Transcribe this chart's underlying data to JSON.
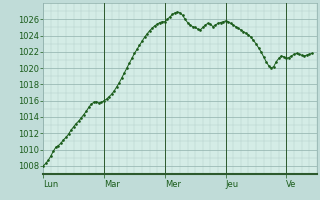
{
  "background_color": "#c0dcd8",
  "plot_bg_color": "#d4ece6",
  "line_color": "#1a5c1a",
  "grid_color_minor": "#b0ccc8",
  "grid_color_major": "#90b0ac",
  "ylim": [
    1007,
    1028
  ],
  "ytick_vals": [
    1008,
    1010,
    1012,
    1014,
    1016,
    1018,
    1020,
    1022,
    1024,
    1026
  ],
  "xlabel_days": [
    "Lun",
    "Mar",
    "Mer",
    "Jeu",
    "Ve"
  ],
  "day_positions": [
    0,
    24,
    48,
    72,
    96
  ],
  "total_hours": 108,
  "pressure_values": [
    1008.0,
    1008.3,
    1008.7,
    1009.2,
    1009.8,
    1010.3,
    1010.5,
    1010.8,
    1011.2,
    1011.5,
    1011.9,
    1012.4,
    1012.8,
    1013.2,
    1013.5,
    1013.9,
    1014.3,
    1014.7,
    1015.2,
    1015.6,
    1015.8,
    1015.9,
    1015.7,
    1015.8,
    1016.0,
    1016.2,
    1016.5,
    1016.8,
    1017.2,
    1017.7,
    1018.2,
    1018.8,
    1019.4,
    1020.0,
    1020.6,
    1021.2,
    1021.8,
    1022.3,
    1022.8,
    1023.3,
    1023.8,
    1024.2,
    1024.6,
    1024.9,
    1025.2,
    1025.4,
    1025.6,
    1025.7,
    1025.7,
    1026.0,
    1026.3,
    1026.6,
    1026.8,
    1026.9,
    1026.8,
    1026.5,
    1026.0,
    1025.6,
    1025.3,
    1025.1,
    1025.0,
    1024.8,
    1024.7,
    1025.0,
    1025.3,
    1025.5,
    1025.4,
    1025.1,
    1025.3,
    1025.5,
    1025.6,
    1025.7,
    1025.8,
    1025.7,
    1025.5,
    1025.3,
    1025.1,
    1024.9,
    1024.7,
    1024.5,
    1024.3,
    1024.1,
    1023.8,
    1023.4,
    1023.0,
    1022.5,
    1022.0,
    1021.4,
    1020.8,
    1020.3,
    1020.0,
    1020.2,
    1020.8,
    1021.2,
    1021.5,
    1021.4,
    1021.2,
    1021.3,
    1021.5,
    1021.7,
    1021.8,
    1021.7,
    1021.6,
    1021.5,
    1021.6,
    1021.7,
    1021.8
  ],
  "marker_size": 1.8,
  "line_width": 0.7,
  "tick_fontsize": 6,
  "separator_color": "#2d5a2d",
  "separator_lw": 0.7,
  "bottom_bar_color": "#2d5a2d",
  "bottom_bar_height": 0.018
}
